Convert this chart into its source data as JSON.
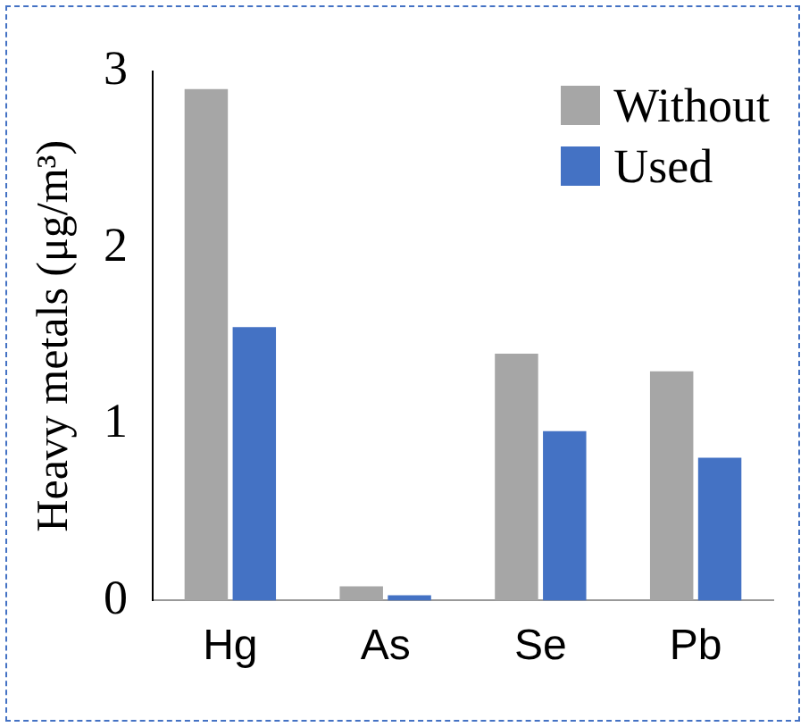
{
  "chart_data": {
    "type": "bar",
    "ylabel": "Heavy metals (μg/m³)",
    "categories": [
      "Hg",
      "As",
      "Se",
      "Pb"
    ],
    "series": [
      {
        "name": "Without",
        "color": "#a6a6a6",
        "values": [
          2.9,
          0.08,
          1.4,
          1.3
        ]
      },
      {
        "name": "Used",
        "color": "#4472c4",
        "values": [
          1.55,
          0.03,
          0.96,
          0.81
        ]
      }
    ],
    "ylim": [
      0,
      3
    ],
    "yticks": [
      0,
      1,
      2,
      3
    ],
    "grid": false,
    "legend": "top right"
  }
}
